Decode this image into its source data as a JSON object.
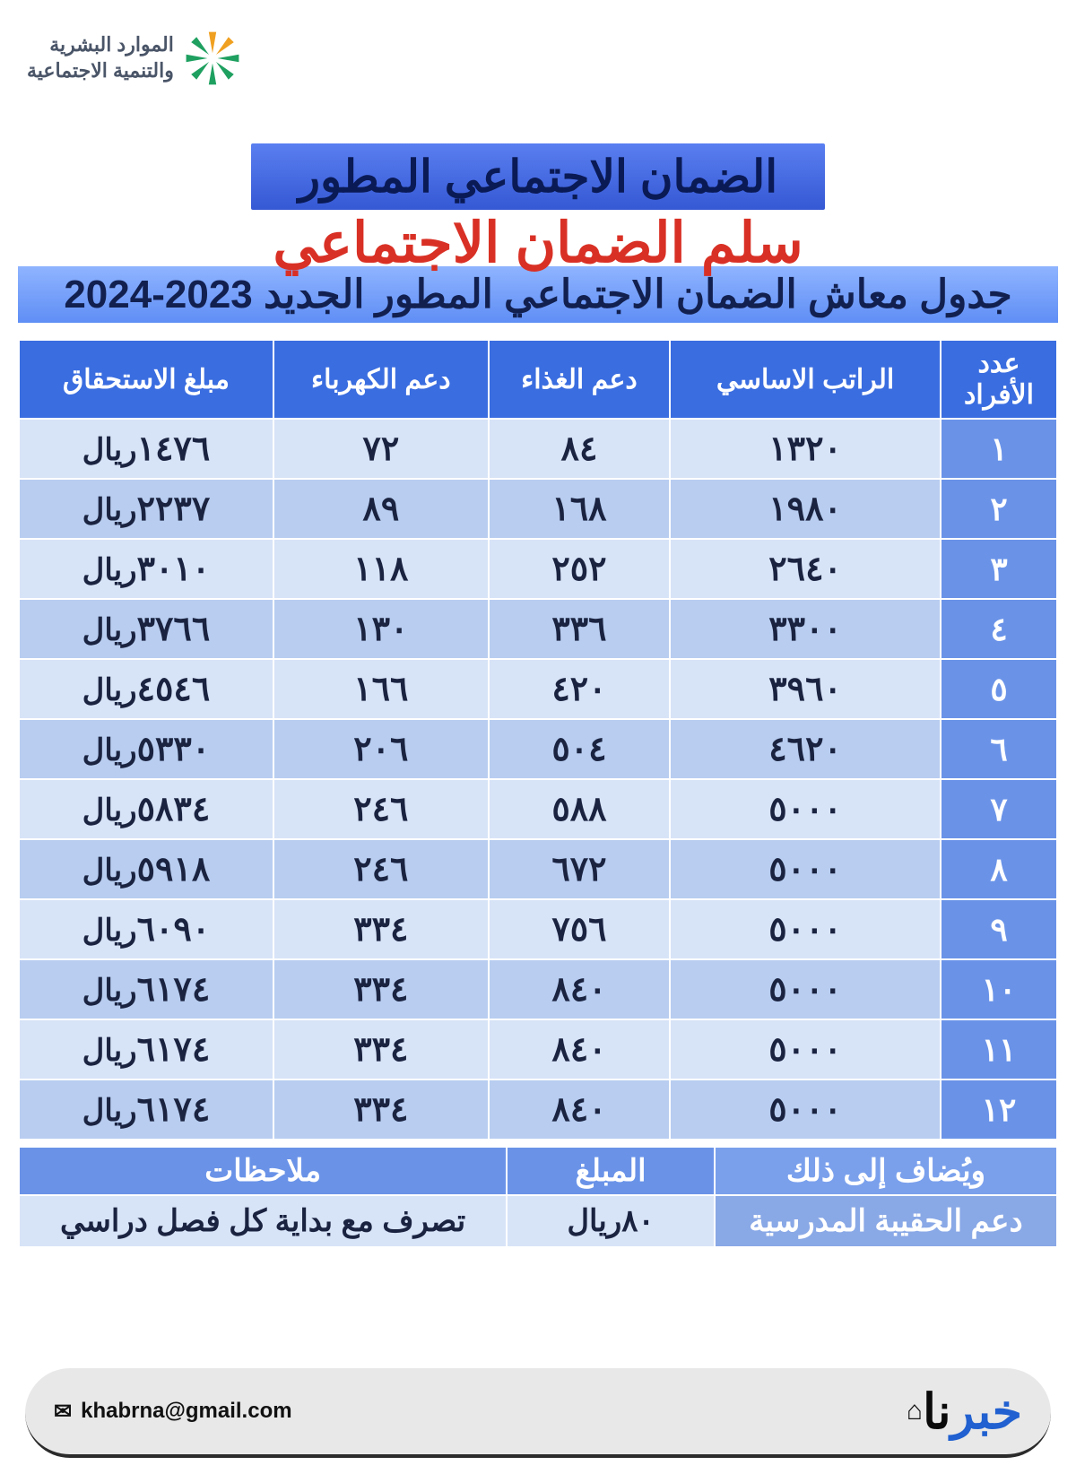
{
  "logo": {
    "line1": "الموارد البشرية",
    "line2": "والتنمية الاجتماعية",
    "text_color": "#4a5568",
    "star_colors": [
      "#f0a020",
      "#f0a020",
      "#1fa060",
      "#1fa060",
      "#1fa060",
      "#1fa060",
      "#1fa060",
      "#1fa060"
    ]
  },
  "titles": {
    "main": "الضمان الاجتماعي المطور",
    "overlay": "سلم الضمان الاجتماعي",
    "sub": "جدول معاش الضمان الاجتماعي المطور الجديد 2023-2024",
    "main_bg": "#4169e1",
    "overlay_color": "#d93025",
    "sub_bg": "#6f95f3"
  },
  "table": {
    "headers": [
      "عدد الأفراد",
      "الراتب الاساسي",
      "دعم الغذاء",
      "دعم الكهرباء",
      "مبلغ الاستحقاق"
    ],
    "currency": "ريال",
    "header_bg": "#3a6de0",
    "idx_bg": "#6a93e8",
    "row_odd_bg": "#d7e3f7",
    "row_even_bg": "#b8cdf0",
    "text_color": "#1a2340",
    "rows": [
      {
        "n": "١",
        "base": "١٣٢٠",
        "food": "٨٤",
        "elec": "٧٢",
        "total": "١٤٧٦"
      },
      {
        "n": "٢",
        "base": "١٩٨٠",
        "food": "١٦٨",
        "elec": "٨٩",
        "total": "٢٢٣٧"
      },
      {
        "n": "٣",
        "base": "٢٦٤٠",
        "food": "٢٥٢",
        "elec": "١١٨",
        "total": "٣٠١٠"
      },
      {
        "n": "٤",
        "base": "٣٣٠٠",
        "food": "٣٣٦",
        "elec": "١٣٠",
        "total": "٣٧٦٦"
      },
      {
        "n": "٥",
        "base": "٣٩٦٠",
        "food": "٤٢٠",
        "elec": "١٦٦",
        "total": "٤٥٤٦"
      },
      {
        "n": "٦",
        "base": "٤٦٢٠",
        "food": "٥٠٤",
        "elec": "٢٠٦",
        "total": "٥٣٣٠"
      },
      {
        "n": "٧",
        "base": "٥٠٠٠",
        "food": "٥٨٨",
        "elec": "٢٤٦",
        "total": "٥٨٣٤"
      },
      {
        "n": "٨",
        "base": "٥٠٠٠",
        "food": "٦٧٢",
        "elec": "٢٤٦",
        "total": "٥٩١٨"
      },
      {
        "n": "٩",
        "base": "٥٠٠٠",
        "food": "٧٥٦",
        "elec": "٣٣٤",
        "total": "٦٠٩٠"
      },
      {
        "n": "١٠",
        "base": "٥٠٠٠",
        "food": "٨٤٠",
        "elec": "٣٣٤",
        "total": "٦١٧٤"
      },
      {
        "n": "١١",
        "base": "٥٠٠٠",
        "food": "٨٤٠",
        "elec": "٣٣٤",
        "total": "٦١٧٤"
      },
      {
        "n": "١٢",
        "base": "٥٠٠٠",
        "food": "٨٤٠",
        "elec": "٣٣٤",
        "total": "٦١٧٤"
      }
    ]
  },
  "addon": {
    "header_added": "ويُضاف إلى ذلك",
    "header_amount": "المبلغ",
    "header_notes": "ملاحظات",
    "row_name": "دعم الحقيبة المدرسية",
    "row_amount": "٨٠",
    "row_notes": "تصرف مع بداية كل فصل دراسي"
  },
  "footer": {
    "brand_main": "خبر",
    "brand_accent": "نا",
    "email": "khabrna@gmail.com",
    "footer_bg": "#e8e8e8",
    "brand_color": "#2060d0"
  }
}
